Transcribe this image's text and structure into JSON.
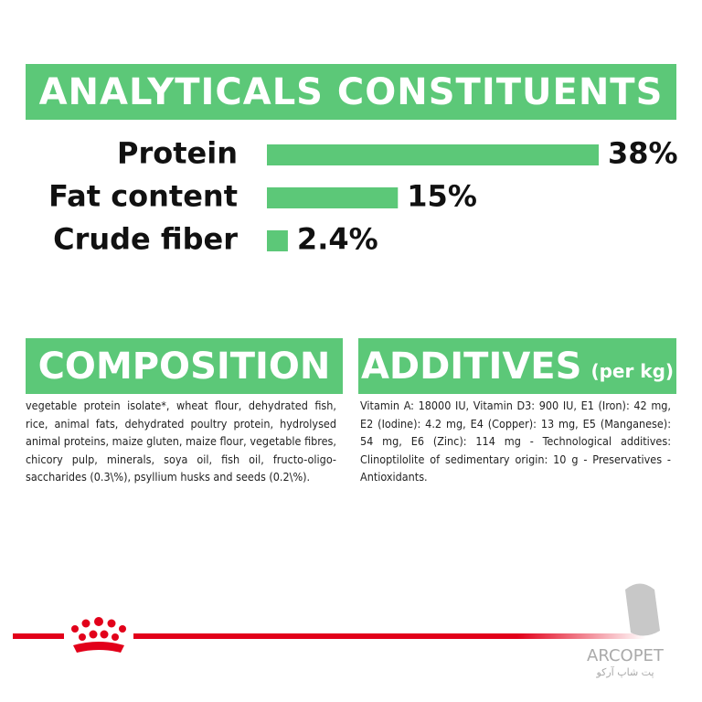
{
  "chart_data": {
    "type": "bar",
    "orientation": "horizontal",
    "title": "ANALYTICALS CONSTITUENTS",
    "categories": [
      "Protein",
      "Fat content",
      "Crude fiber"
    ],
    "values": [
      38,
      15,
      2.4
    ],
    "value_labels": [
      "38%",
      "15%",
      "2.4%"
    ],
    "color": "#5cc878",
    "xlim": [
      0,
      38
    ]
  },
  "composition": {
    "title": "COMPOSITION",
    "text": "vegetable protein isolate*, wheat flour, dehydrated fish, rice, animal fats, dehydrated poultry protein, hydrolysed animal proteins, maize gluten, maize flour, vegetable fibres, chicory pulp, minerals, soya oil, fish oil, fructo-oligo-saccharides (0.3\\%), psyllium husks and seeds (0.2\\%)."
  },
  "additives": {
    "title": "ADDITIVES",
    "unit": "(per kg)",
    "text": "Vitamin A: 18000 IU, Vitamin D3: 900 IU, E1 (Iron): 42 mg, E2 (Iodine): 4.2 mg, E4 (Copper): 13 mg, E5 (Manganese): 54 mg, E6 (Zinc): 114 mg - Technological additives: Clinoptilolite of sedimentary origin: 10 g - Preservatives - Antioxidants."
  },
  "watermark": {
    "brand": "ARCOPET",
    "subtitle": "پت شاپ آرکو"
  }
}
